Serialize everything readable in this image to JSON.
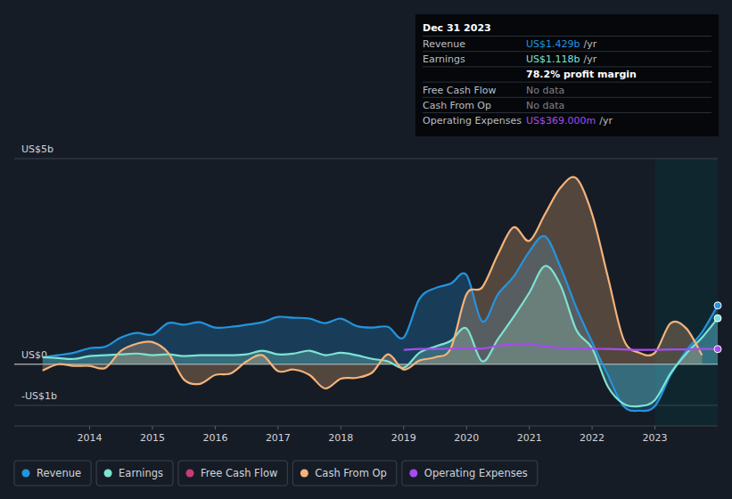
{
  "chart_data": {
    "type": "line",
    "x": [
      2013.25,
      2013.5,
      2013.75,
      2014,
      2014.25,
      2014.5,
      2014.75,
      2015,
      2015.25,
      2015.5,
      2015.75,
      2016,
      2016.25,
      2016.5,
      2016.75,
      2017,
      2017.25,
      2017.5,
      2017.75,
      2018,
      2018.25,
      2018.5,
      2018.75,
      2019,
      2019.25,
      2019.5,
      2019.75,
      2020,
      2020.25,
      2020.5,
      2020.75,
      2021,
      2021.25,
      2021.5,
      2021.75,
      2022,
      2022.25,
      2022.5,
      2022.75,
      2023,
      2023.25,
      2023.5,
      2023.75,
      2024
    ],
    "xlim": [
      2012.8,
      2024
    ],
    "xticks": [
      2014,
      2015,
      2016,
      2017,
      2018,
      2019,
      2020,
      2021,
      2022,
      2023
    ],
    "ylim": [
      -1.5,
      5
    ],
    "yticks": [
      {
        "value": -1,
        "label": "-US$1b"
      },
      {
        "value": 0,
        "label": "US$0"
      },
      {
        "value": 5,
        "label": "US$5b"
      }
    ],
    "grid": true,
    "legend": "bottom",
    "series": [
      {
        "name": "Revenue",
        "color": "#2394df",
        "type": "area",
        "values": [
          0.17,
          0.22,
          0.28,
          0.39,
          0.43,
          0.65,
          0.76,
          0.72,
          1.0,
          0.96,
          1.02,
          0.89,
          0.91,
          0.96,
          1.02,
          1.15,
          1.13,
          1.11,
          1.0,
          1.11,
          0.93,
          0.89,
          0.91,
          0.65,
          1.59,
          1.85,
          1.96,
          2.17,
          1.04,
          1.7,
          2.13,
          2.74,
          3.11,
          2.35,
          1.37,
          0.54,
          -0.26,
          -1.02,
          -1.13,
          -1.02,
          -0.26,
          0.33,
          0.78,
          1.429
        ]
      },
      {
        "name": "Earnings",
        "color": "#7ee3d3",
        "type": "area",
        "values": [
          0.17,
          0.15,
          0.13,
          0.2,
          0.22,
          0.24,
          0.26,
          0.22,
          0.24,
          0.2,
          0.22,
          0.22,
          0.22,
          0.24,
          0.33,
          0.24,
          0.26,
          0.33,
          0.22,
          0.28,
          0.22,
          0.13,
          0.07,
          -0.09,
          0.28,
          0.43,
          0.57,
          0.87,
          0.07,
          0.61,
          1.15,
          1.74,
          2.39,
          1.91,
          0.83,
          0.39,
          -0.54,
          -0.96,
          -1.02,
          -0.87,
          -0.22,
          0.26,
          0.65,
          1.118
        ]
      },
      {
        "name": "Free Cash Flow",
        "color": "#c93c73",
        "type": "line",
        "values": [
          null,
          null,
          null,
          null,
          null,
          null,
          null,
          null,
          null,
          null,
          null,
          null,
          null,
          null,
          null,
          null,
          null,
          null,
          null,
          null,
          null,
          null,
          null,
          null,
          null,
          null,
          null,
          null,
          null,
          null,
          null,
          null,
          null,
          null,
          null,
          null,
          null,
          null,
          null,
          null,
          null,
          null,
          null,
          null
        ]
      },
      {
        "name": "Cash From Op",
        "color": "#f5b37a",
        "type": "area",
        "values": [
          -0.15,
          0,
          -0.04,
          -0.04,
          -0.09,
          0.33,
          0.5,
          0.54,
          0.28,
          -0.37,
          -0.48,
          -0.26,
          -0.22,
          0.07,
          0.22,
          -0.17,
          -0.13,
          -0.26,
          -0.59,
          -0.35,
          -0.33,
          -0.2,
          0.24,
          -0.13,
          0.09,
          0.17,
          0.39,
          1.7,
          1.87,
          2.67,
          3.33,
          3.0,
          3.65,
          4.3,
          4.52,
          3.65,
          2.13,
          0.61,
          0.28,
          0.28,
          1.0,
          0.87,
          0.22,
          null
        ]
      },
      {
        "name": "Operating Expenses",
        "color": "#a64cf0",
        "type": "line",
        "values": [
          null,
          null,
          null,
          null,
          null,
          null,
          null,
          null,
          null,
          null,
          null,
          null,
          null,
          null,
          null,
          null,
          null,
          null,
          null,
          null,
          null,
          null,
          null,
          0.35,
          0.37,
          0.37,
          0.38,
          0.4,
          0.38,
          0.45,
          0.48,
          0.5,
          0.43,
          0.4,
          0.38,
          0.38,
          0.37,
          0.36,
          0.35,
          0.35,
          0.36,
          0.36,
          0.37,
          0.369
        ]
      }
    ],
    "tooltip": {
      "title": "Dec 31 2023",
      "rows": [
        {
          "label": "Revenue",
          "value": "US$1.429b",
          "unit": "/yr"
        },
        {
          "label": "Earnings",
          "value": "US$1.118b",
          "unit": "/yr"
        },
        {
          "value": "78.2% profit margin"
        },
        {
          "label": "Free Cash Flow",
          "value": "No data"
        },
        {
          "label": "Cash From Op",
          "value": "No data"
        },
        {
          "label": "Operating Expenses",
          "value": "US$369.000m",
          "unit": "/yr"
        }
      ]
    }
  }
}
